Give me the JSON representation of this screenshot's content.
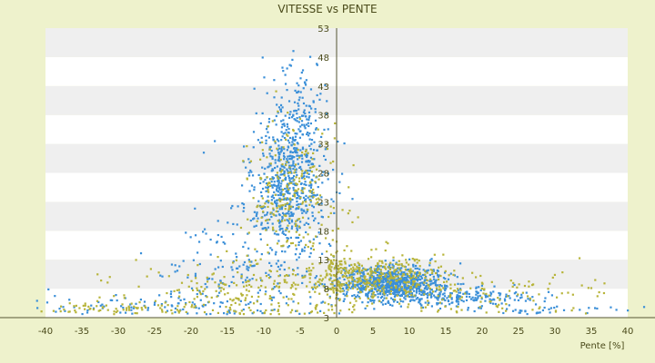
{
  "chart_data": {
    "type": "scatter",
    "title": "VITESSE vs PENTE",
    "xlabel": "Pente [%]",
    "ylabel": "",
    "xlim": [
      -40,
      40
    ],
    "ylim": [
      3,
      53
    ],
    "x_ticks": [
      "-40",
      "-35",
      "-30",
      "-25",
      "-20",
      "-15",
      "-10",
      "-5",
      "0",
      "5",
      "10",
      "15",
      "20",
      "25",
      "30",
      "35",
      "40"
    ],
    "y_ticks": [
      "3",
      "8",
      "13",
      "18",
      "23",
      "28",
      "33",
      "38",
      "43",
      "48",
      "53"
    ],
    "grid": "alternating horizontal bands",
    "legend": "none",
    "colors": {
      "background": "#eef2cc",
      "plot_band_light": "#ffffff",
      "plot_band_dark": "#efefef",
      "series_a": "#3a8fd8",
      "series_b": "#b7b43a",
      "axis": "#555533",
      "text": "#4a4a1a"
    },
    "series": [
      {
        "color_key": "series_a",
        "clusters": [
          {
            "cx": -7,
            "cy": 26,
            "sx": 2.8,
            "sy": 6.5,
            "n": 650
          },
          {
            "cx": -5,
            "cy": 38,
            "sx": 1.6,
            "sy": 5,
            "n": 120
          },
          {
            "cx": 7.5,
            "cy": 9,
            "sx": 3.5,
            "sy": 1.4,
            "n": 800
          },
          {
            "cx": 16,
            "cy": 6.5,
            "sx": 6,
            "sy": 0.9,
            "n": 200
          },
          {
            "cx": -15,
            "cy": 12,
            "sx": 5,
            "sy": 4,
            "n": 120
          },
          {
            "cx": -20,
            "cy": 5,
            "sx": 12,
            "sy": 1.2,
            "n": 120
          },
          {
            "cx": 30,
            "cy": 4.2,
            "sx": 8,
            "sy": 0.6,
            "n": 40
          }
        ]
      },
      {
        "color_key": "series_b",
        "clusters": [
          {
            "cx": -6,
            "cy": 24,
            "sx": 3,
            "sy": 6,
            "n": 250
          },
          {
            "cx": -12,
            "cy": 7,
            "sx": 9,
            "sy": 3,
            "n": 250
          },
          {
            "cx": 6,
            "cy": 10,
            "sx": 4.5,
            "sy": 2,
            "n": 350
          },
          {
            "cx": 20,
            "cy": 7,
            "sx": 9,
            "sy": 2,
            "n": 120
          },
          {
            "cx": -30,
            "cy": 4.5,
            "sx": 6,
            "sy": 0.8,
            "n": 60
          },
          {
            "cx": 0,
            "cy": 10,
            "sx": 0.6,
            "sy": 2.5,
            "n": 60
          }
        ]
      }
    ]
  }
}
